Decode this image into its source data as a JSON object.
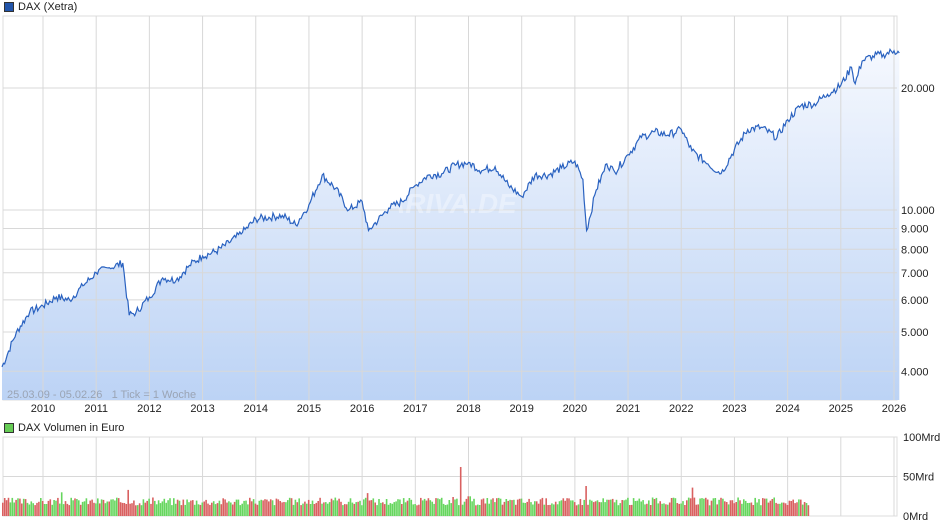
{
  "main_chart": {
    "legend_label": "DAX (Xetra)",
    "legend_color": "#2255aa",
    "info_text": "25.03.09 - 05.02.26   1 Tick = 1 Woche",
    "watermark": "ARIVA.DE",
    "line_color": "#2a62c0",
    "fill_top_color": "#f3f7fe",
    "fill_bottom_color": "#bcd3f5"
  },
  "volume_chart": {
    "legend_label": "DAX Volumen in Euro",
    "legend_color": "#66cc55",
    "up_color": "#66d65e",
    "down_color": "#d96060"
  },
  "chart_data": [
    {
      "type": "area",
      "title": "DAX (Xetra)",
      "subtitle": "25.03.09 - 05.02.26, 1 Tick = 1 Woche",
      "xlabel": "",
      "ylabel": "",
      "yscale": "log",
      "ylim": [
        3500,
        25000
      ],
      "grid": true,
      "legend_position": "top-left",
      "y_ticks": [
        "4.000",
        "5.000",
        "6.000",
        "7.000",
        "8.000",
        "9.000",
        "10.000",
        "20.000"
      ],
      "x_ticks": [
        "2010",
        "2011",
        "2012",
        "2013",
        "2014",
        "2015",
        "2016",
        "2017",
        "2018",
        "2019",
        "2020",
        "2021",
        "2022",
        "2023",
        "2024",
        "2025",
        "2026"
      ],
      "x": [
        2009.23,
        2009.5,
        2009.75,
        2010.0,
        2010.25,
        2010.5,
        2010.75,
        2011.0,
        2011.25,
        2011.5,
        2011.62,
        2011.75,
        2012.0,
        2012.25,
        2012.5,
        2012.75,
        2013.0,
        2013.25,
        2013.5,
        2013.75,
        2014.0,
        2014.25,
        2014.5,
        2014.75,
        2015.0,
        2015.25,
        2015.5,
        2015.75,
        2016.0,
        2016.12,
        2016.5,
        2016.75,
        2017.0,
        2017.25,
        2017.5,
        2017.75,
        2018.0,
        2018.25,
        2018.5,
        2018.75,
        2019.0,
        2019.25,
        2019.5,
        2019.75,
        2020.0,
        2020.15,
        2020.22,
        2020.4,
        2020.6,
        2020.75,
        2021.0,
        2021.25,
        2021.5,
        2021.75,
        2022.0,
        2022.2,
        2022.5,
        2022.75,
        2023.0,
        2023.25,
        2023.5,
        2023.8,
        2024.0,
        2024.25,
        2024.5,
        2024.75,
        2025.0,
        2025.2,
        2025.27,
        2025.4,
        2025.6,
        2025.8,
        2026.0,
        2026.1
      ],
      "values": [
        4100,
        5000,
        5600,
        5800,
        6100,
        6000,
        6500,
        7000,
        7200,
        7400,
        5500,
        5600,
        6100,
        6800,
        6700,
        7300,
        7700,
        7900,
        8300,
        8800,
        9500,
        9600,
        9700,
        9200,
        10300,
        12200,
        11300,
        10000,
        10500,
        8900,
        10100,
        10500,
        11500,
        12200,
        12300,
        12900,
        13100,
        12500,
        12800,
        11500,
        10800,
        12200,
        12200,
        12700,
        13200,
        11900,
        8900,
        11200,
        13000,
        12400,
        13700,
        15100,
        15600,
        15300,
        15800,
        14000,
        13000,
        12300,
        14100,
        15800,
        16000,
        15100,
        16700,
        18100,
        18300,
        19300,
        20300,
        22500,
        20500,
        23300,
        24000,
        24200,
        24700,
        24400
      ]
    },
    {
      "type": "bar",
      "title": "DAX Volumen in Euro",
      "ylabel": "",
      "ylim": [
        0,
        100
      ],
      "y_ticks": [
        "0Mrd",
        "50Mrd",
        "100Mrd"
      ],
      "unit": "Mrd EUR",
      "note": "weekly volume bars, green = up week, red = down week; data ends around 2024.4",
      "x_range": [
        2009.23,
        2024.4
      ],
      "typical_value": 18,
      "peaks": [
        {
          "x": 2010.35,
          "value": 30
        },
        {
          "x": 2011.6,
          "value": 33
        },
        {
          "x": 2016.1,
          "value": 29
        },
        {
          "x": 2018.0,
          "value": 25
        },
        {
          "x": 2017.7,
          "value": 24
        },
        {
          "x": 2017.85,
          "value": 62
        },
        {
          "x": 2020.2,
          "value": 38
        },
        {
          "x": 2022.2,
          "value": 36
        }
      ]
    }
  ]
}
